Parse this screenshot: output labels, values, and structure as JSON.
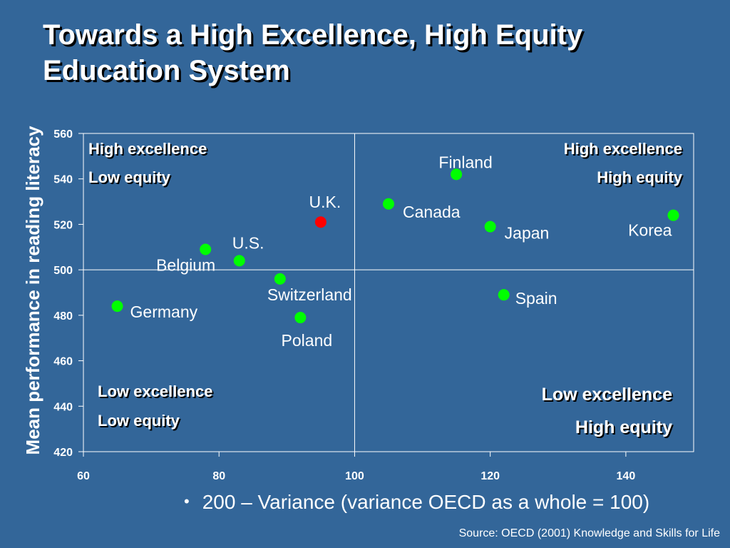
{
  "slide": {
    "title": "Towards a High Excellence, High Equity Education System",
    "bullet": "200 – Variance (variance OECD as a whole = 100)",
    "source": "Source: OECD (2001) Knowledge and Skills for Life"
  },
  "chart_data": {
    "type": "scatter",
    "title": "",
    "xlabel": "",
    "ylabel": "Mean performance in reading literacy",
    "xlim": [
      60,
      150
    ],
    "ylim": [
      420,
      560
    ],
    "xticks": [
      60,
      80,
      100,
      120,
      140
    ],
    "yticks": [
      420,
      440,
      460,
      480,
      500,
      520,
      540,
      560
    ],
    "grid": false,
    "quadrant_lines": {
      "x": 100,
      "y": 500
    },
    "point_colors": {
      "default": "#00ff00",
      "highlight": "#ff0000"
    },
    "points": [
      {
        "label": "Germany",
        "x": 65,
        "y": 484,
        "highlight": false
      },
      {
        "label": "Belgium",
        "x": 78,
        "y": 509,
        "highlight": false
      },
      {
        "label": "U.S.",
        "x": 83,
        "y": 504,
        "highlight": false
      },
      {
        "label": "Switzerland",
        "x": 89,
        "y": 496,
        "highlight": false
      },
      {
        "label": "Poland",
        "x": 92,
        "y": 479,
        "highlight": false
      },
      {
        "label": "U.K.",
        "x": 95,
        "y": 521,
        "highlight": true
      },
      {
        "label": "Canada",
        "x": 105,
        "y": 529,
        "highlight": false
      },
      {
        "label": "Finland",
        "x": 115,
        "y": 542,
        "highlight": false
      },
      {
        "label": "Japan",
        "x": 120,
        "y": 519,
        "highlight": false
      },
      {
        "label": "Spain",
        "x": 122,
        "y": 489,
        "highlight": false
      },
      {
        "label": "Korea",
        "x": 147,
        "y": 524,
        "highlight": false
      }
    ],
    "quadrant_labels": [
      {
        "position": "top-left",
        "lines": [
          "High excellence",
          "Low equity"
        ]
      },
      {
        "position": "top-right",
        "lines": [
          "High excellence",
          "High equity"
        ]
      },
      {
        "position": "bottom-left",
        "lines": [
          "Low excellence",
          "Low equity"
        ]
      },
      {
        "position": "bottom-right",
        "lines": [
          "Low excellence",
          "High equity"
        ]
      }
    ]
  }
}
